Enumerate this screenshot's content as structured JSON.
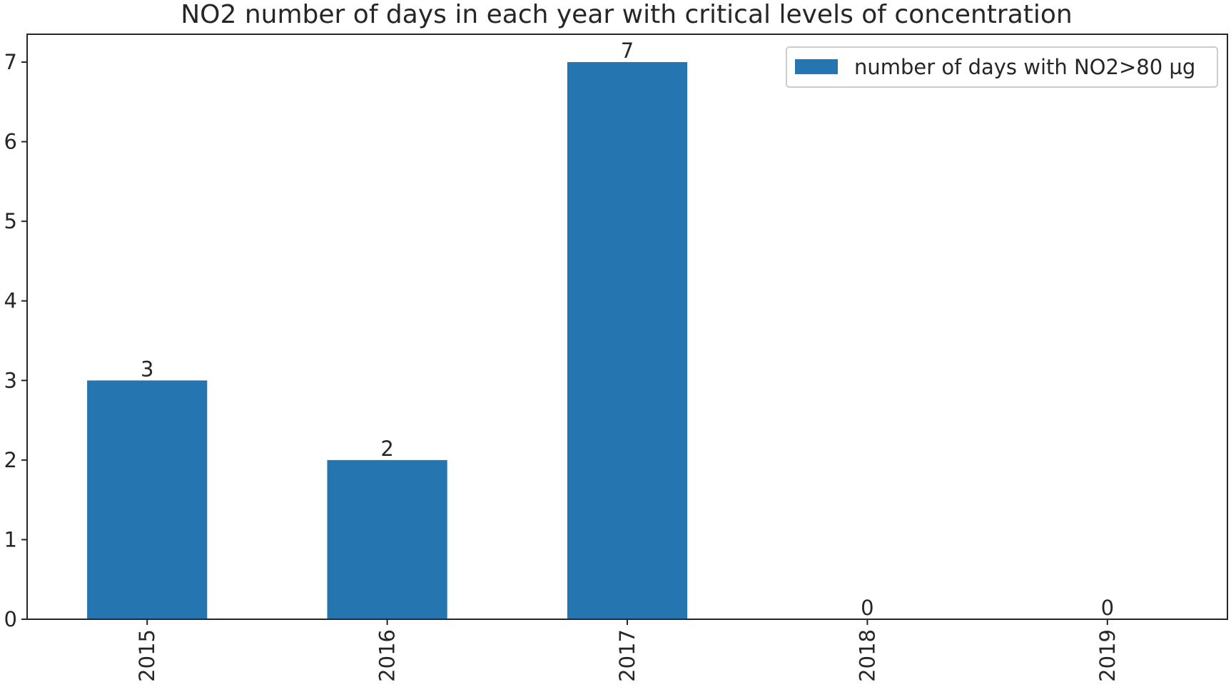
{
  "chart_data": {
    "type": "bar",
    "title": "NO2 number of days in each year with critical levels of concentration",
    "xlabel": "",
    "ylabel": "",
    "categories": [
      "2015",
      "2016",
      "2017",
      "2018",
      "2019"
    ],
    "series": [
      {
        "name": "number of days with NO2>80 µg",
        "values": [
          3,
          2,
          7,
          0,
          0
        ],
        "color": "#2575b0"
      }
    ],
    "data_labels": [
      "3",
      "2",
      "7",
      "0",
      "0"
    ],
    "ylim": [
      0,
      7.35
    ],
    "yticks": [
      0,
      1,
      2,
      3,
      4,
      5,
      6,
      7
    ],
    "ytick_labels": [
      "0",
      "1",
      "2",
      "3",
      "4",
      "5",
      "6",
      "7"
    ],
    "x_tick_rotation": "vertical",
    "grid": false,
    "legend_position": "top-right"
  }
}
